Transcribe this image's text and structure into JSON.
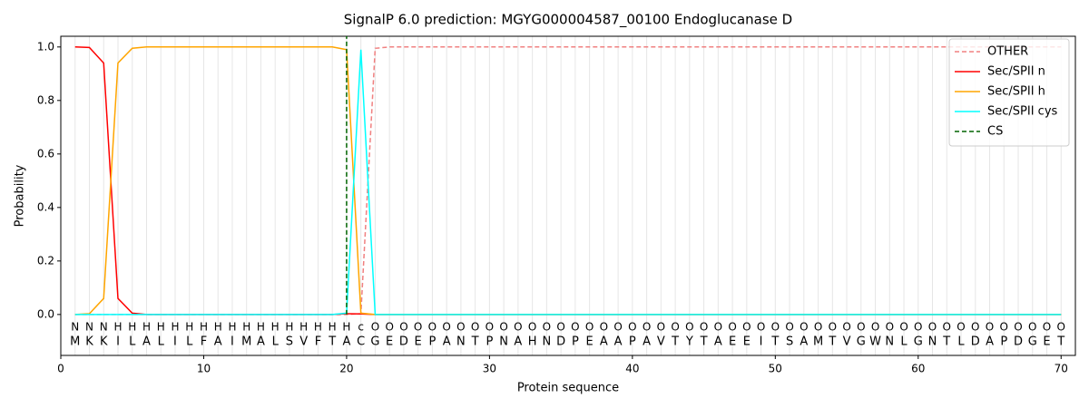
{
  "chart_data": {
    "type": "line",
    "title": "SignalP 6.0 prediction: MGYG000004587_00100 Endoglucanase D",
    "x_label": "Protein sequence",
    "y_label": "Probability",
    "xlim": [
      0,
      71
    ],
    "ylim": [
      -0.153,
      1.04
    ],
    "xticks": [
      0,
      10,
      20,
      30,
      40,
      50,
      60,
      70
    ],
    "yticks": [
      {
        "value": 0,
        "label": "0.0"
      },
      {
        "value": 0.2,
        "label": "0.2"
      },
      {
        "value": 0.4,
        "label": "0.4"
      },
      {
        "value": 0.6,
        "label": "0.6"
      },
      {
        "value": 0.8,
        "label": "0.8"
      },
      {
        "value": 1,
        "label": "1.0"
      }
    ],
    "legend": "upper right",
    "x": [
      1,
      2,
      3,
      4,
      5,
      6,
      7,
      8,
      9,
      10,
      11,
      12,
      13,
      14,
      15,
      16,
      17,
      18,
      19,
      20,
      21,
      22,
      23,
      24,
      25,
      26,
      27,
      28,
      29,
      30,
      31,
      32,
      33,
      34,
      35,
      36,
      37,
      38,
      39,
      40,
      41,
      42,
      43,
      44,
      45,
      46,
      47,
      48,
      49,
      50,
      51,
      52,
      53,
      54,
      55,
      56,
      57,
      58,
      59,
      60,
      61,
      62,
      63,
      64,
      65,
      66,
      67,
      68,
      69,
      70
    ],
    "sequence": [
      "M",
      "K",
      "K",
      "I",
      "L",
      "A",
      "L",
      "I",
      "L",
      "F",
      "A",
      "I",
      "M",
      "A",
      "L",
      "S",
      "V",
      "F",
      "T",
      "A",
      "C",
      "G",
      "E",
      "D",
      "E",
      "P",
      "A",
      "N",
      "T",
      "P",
      "N",
      "A",
      "H",
      "N",
      "D",
      "P",
      "E",
      "A",
      "A",
      "P",
      "A",
      "V",
      "T",
      "Y",
      "T",
      "A",
      "E",
      "E",
      "I",
      "T",
      "S",
      "A",
      "M",
      "T",
      "V",
      "G",
      "W",
      "N",
      "L",
      "G",
      "N",
      "T",
      "L",
      "D",
      "A",
      "P",
      "D",
      "G",
      "E",
      "T"
    ],
    "labels": [
      "N",
      "N",
      "N",
      "H",
      "H",
      "H",
      "H",
      "H",
      "H",
      "H",
      "H",
      "H",
      "H",
      "H",
      "H",
      "H",
      "H",
      "H",
      "H",
      "H",
      "c",
      "O",
      "O",
      "O",
      "O",
      "O",
      "O",
      "O",
      "O",
      "O",
      "O",
      "O",
      "O",
      "O",
      "O",
      "O",
      "O",
      "O",
      "O",
      "O",
      "O",
      "O",
      "O",
      "O",
      "O",
      "O",
      "O",
      "O",
      "O",
      "O",
      "O",
      "O",
      "O",
      "O",
      "O",
      "O",
      "O",
      "O",
      "O",
      "O",
      "O",
      "O",
      "O",
      "O",
      "O",
      "O",
      "O",
      "O",
      "O",
      "O"
    ],
    "label_colors": {
      "N": "#ff0000",
      "H": "#ffa500",
      "c": "#00d8d8",
      "O": "#808080"
    },
    "series": [
      {
        "name": "OTHER",
        "color": "#f08080",
        "dash": true,
        "values": [
          0,
          0,
          0,
          0,
          0,
          0,
          0,
          0,
          0,
          0,
          0,
          0,
          0,
          0,
          0,
          0,
          0,
          0,
          0,
          0,
          0.003,
          0.995,
          1,
          1,
          1,
          1,
          1,
          1,
          1,
          1,
          1,
          1,
          1,
          1,
          1,
          1,
          1,
          1,
          1,
          1,
          1,
          1,
          1,
          1,
          1,
          1,
          1,
          1,
          1,
          1,
          1,
          1,
          1,
          1,
          1,
          1,
          1,
          1,
          1,
          1,
          1,
          1,
          1,
          1,
          1,
          1,
          1,
          1,
          1,
          1
        ]
      },
      {
        "name": "Sec/SPII n",
        "color": "#ff0000",
        "values": [
          1,
          0.998,
          0.94,
          0.06,
          0.005,
          0,
          0,
          0,
          0,
          0,
          0,
          0,
          0,
          0,
          0,
          0,
          0,
          0,
          0,
          0.003,
          0.002,
          0,
          0,
          0,
          0,
          0,
          0,
          0,
          0,
          0,
          0,
          0,
          0,
          0,
          0,
          0,
          0,
          0,
          0,
          0,
          0,
          0,
          0,
          0,
          0,
          0,
          0,
          0,
          0,
          0,
          0,
          0,
          0,
          0,
          0,
          0,
          0,
          0,
          0,
          0,
          0,
          0,
          0,
          0,
          0,
          0,
          0,
          0,
          0,
          0
        ]
      },
      {
        "name": "Sec/SPII h",
        "color": "#ffa500",
        "values": [
          0,
          0.003,
          0.06,
          0.94,
          0.995,
          1,
          1,
          1,
          1,
          1,
          1,
          1,
          1,
          1,
          1,
          1,
          1,
          1,
          1,
          0.99,
          0.005,
          0,
          0,
          0,
          0,
          0,
          0,
          0,
          0,
          0,
          0,
          0,
          0,
          0,
          0,
          0,
          0,
          0,
          0,
          0,
          0,
          0,
          0,
          0,
          0,
          0,
          0,
          0,
          0,
          0,
          0,
          0,
          0,
          0,
          0,
          0,
          0,
          0,
          0,
          0,
          0,
          0,
          0,
          0,
          0,
          0,
          0,
          0,
          0,
          0
        ]
      },
      {
        "name": "Sec/SPII cys",
        "color": "#00ffff",
        "values": [
          0,
          0,
          0,
          0,
          0,
          0,
          0,
          0,
          0,
          0,
          0,
          0,
          0,
          0,
          0,
          0,
          0,
          0,
          0,
          0.005,
          0.99,
          0,
          0,
          0,
          0,
          0,
          0,
          0,
          0,
          0,
          0,
          0,
          0,
          0,
          0,
          0,
          0,
          0,
          0,
          0,
          0,
          0,
          0,
          0,
          0,
          0,
          0,
          0,
          0,
          0,
          0,
          0,
          0,
          0,
          0,
          0,
          0,
          0,
          0,
          0,
          0,
          0,
          0,
          0,
          0,
          0,
          0,
          0,
          0,
          0
        ]
      },
      {
        "name": "CS",
        "color": "#006400",
        "dash": true,
        "x": [
          20,
          20
        ],
        "values": [
          0,
          1.04
        ]
      }
    ]
  }
}
